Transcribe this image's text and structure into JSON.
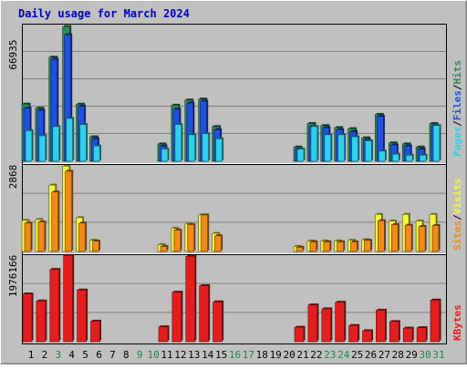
{
  "title": "Daily usage for March 2024",
  "colors": {
    "background": "#c0c0c0",
    "title": "#0000c0",
    "hits": "#2e8b57",
    "files": "#2050e0",
    "pages": "#2fd0ec",
    "visits": "#f5f53a",
    "sites": "#f08a18",
    "kbytes": "#e41e1e",
    "weekday_label": "#000000",
    "weekend_label": "#1a8a4a"
  },
  "legend": {
    "pages": "Pages",
    "files": "Files",
    "hits": "Hits",
    "sites": "Sites",
    "visits": "Visits",
    "kbytes": "KBytes",
    "sep": "/"
  },
  "axis_max": {
    "top": "66935",
    "mid": "2868",
    "bottom": "1976166"
  },
  "chart_data": [
    {
      "type": "bar",
      "title": "Daily usage for March 2024",
      "categories": [
        "1",
        "2",
        "3",
        "4",
        "5",
        "6",
        "7",
        "8",
        "9",
        "10",
        "11",
        "12",
        "13",
        "14",
        "15",
        "16",
        "17",
        "18",
        "19",
        "20",
        "21",
        "22",
        "23",
        "24",
        "25",
        "26",
        "27",
        "28",
        "29",
        "30",
        "31"
      ],
      "weekend_days": [
        "3",
        "9",
        "10",
        "16",
        "17",
        "23",
        "24",
        "30",
        "31"
      ],
      "ylim": [
        0,
        66935
      ],
      "y_label": "66935",
      "series": [
        {
          "name": "Hits",
          "values": [
            28000,
            26000,
            51000,
            66000,
            28000,
            12000,
            0,
            0,
            0,
            0,
            8500,
            27500,
            30000,
            30500,
            17000,
            0,
            0,
            0,
            0,
            0,
            7000,
            18500,
            17500,
            16500,
            16000,
            11500,
            23000,
            9000,
            8500,
            7000,
            18500
          ]
        },
        {
          "name": "Files",
          "values": [
            26000,
            25000,
            50000,
            62000,
            27000,
            11000,
            0,
            0,
            0,
            0,
            7500,
            25500,
            28500,
            29500,
            15500,
            0,
            0,
            0,
            0,
            0,
            6000,
            17000,
            16500,
            15500,
            14500,
            10500,
            22000,
            8000,
            7500,
            6000,
            17500
          ]
        },
        {
          "name": "Pages",
          "values": [
            15000,
            12500,
            17000,
            21000,
            18000,
            7500,
            0,
            0,
            0,
            0,
            6000,
            18000,
            13000,
            13500,
            11000,
            0,
            0,
            0,
            0,
            0,
            6000,
            17000,
            13000,
            13000,
            12000,
            10000,
            5000,
            3500,
            3000,
            3000,
            17500
          ]
        }
      ]
    },
    {
      "type": "bar",
      "categories": [
        "1",
        "2",
        "3",
        "4",
        "5",
        "6",
        "7",
        "8",
        "9",
        "10",
        "11",
        "12",
        "13",
        "14",
        "15",
        "16",
        "17",
        "18",
        "19",
        "20",
        "21",
        "22",
        "23",
        "24",
        "25",
        "26",
        "27",
        "28",
        "29",
        "30",
        "31"
      ],
      "ylim": [
        0,
        2868
      ],
      "y_label": "2868",
      "series": [
        {
          "name": "Visits",
          "values": [
            1030,
            1060,
            2200,
            2830,
            1120,
            370,
            0,
            0,
            0,
            0,
            230,
            770,
            910,
            1210,
            600,
            0,
            0,
            0,
            0,
            0,
            170,
            350,
            350,
            350,
            370,
            390,
            1230,
            1010,
            1230,
            1010,
            1230
          ]
        },
        {
          "name": "Sites",
          "values": [
            940,
            980,
            1970,
            2660,
            940,
            340,
            0,
            0,
            0,
            0,
            170,
            710,
            890,
            1210,
            520,
            0,
            0,
            0,
            0,
            0,
            140,
            320,
            320,
            320,
            320,
            370,
            1020,
            890,
            870,
            830,
            860
          ]
        }
      ]
    },
    {
      "type": "bar",
      "categories": [
        "1",
        "2",
        "3",
        "4",
        "5",
        "6",
        "7",
        "8",
        "9",
        "10",
        "11",
        "12",
        "13",
        "14",
        "15",
        "16",
        "17",
        "18",
        "19",
        "20",
        "21",
        "22",
        "23",
        "24",
        "25",
        "26",
        "27",
        "28",
        "29",
        "30",
        "31"
      ],
      "ylim": [
        0,
        1976166
      ],
      "y_label": "1976166",
      "series": [
        {
          "name": "KBytes",
          "values": [
            1090000,
            930000,
            1650000,
            1970000,
            1180000,
            470000,
            0,
            0,
            0,
            0,
            340000,
            1130000,
            1950000,
            1280000,
            910000,
            0,
            0,
            0,
            0,
            0,
            330000,
            840000,
            750000,
            900000,
            370000,
            250000,
            720000,
            460000,
            310000,
            320000,
            950000
          ]
        }
      ]
    }
  ]
}
